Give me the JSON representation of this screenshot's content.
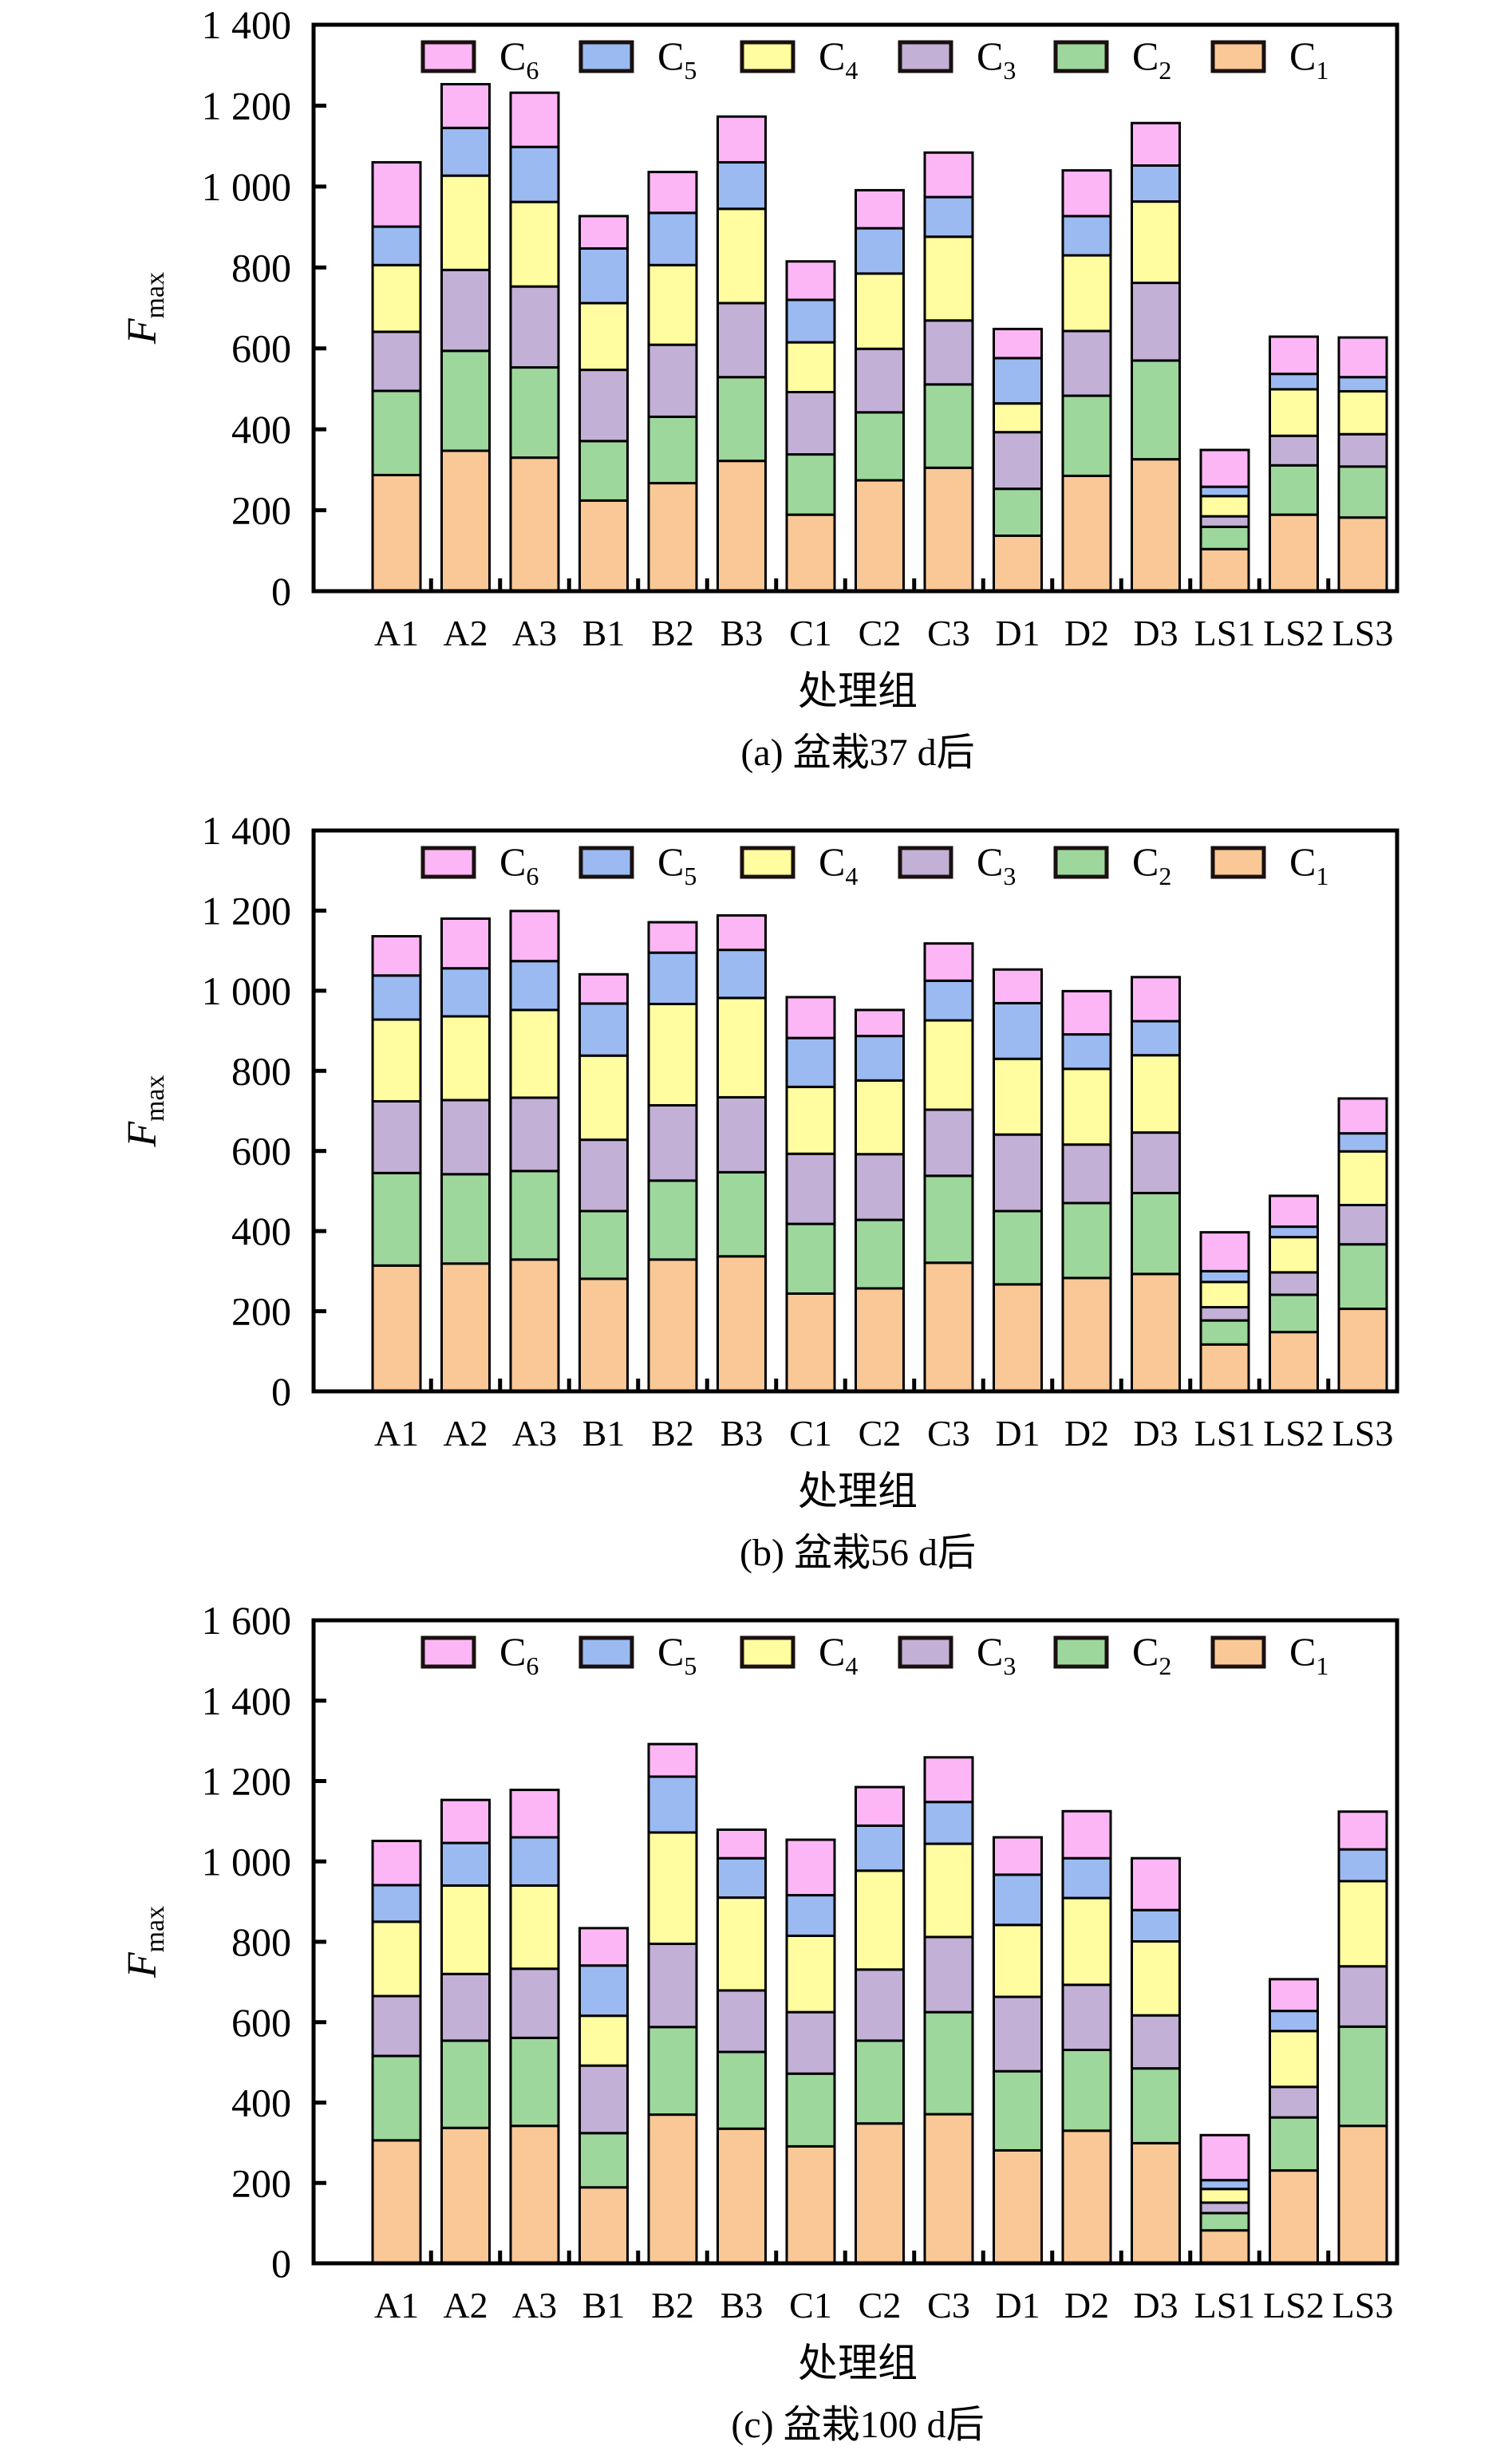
{
  "series_colors": {
    "C1": "#FAC896",
    "C2": "#9ED79B",
    "C3": "#C3B0D6",
    "C4": "#FFFDA0",
    "C5": "#9BBAF2",
    "C6": "#FCB6F5"
  },
  "chart_data": [
    {
      "type": "bar",
      "stacked": true,
      "title": "(a) 盆栽37 d后",
      "xlabel": "处理组",
      "ylabel": "F",
      "ylabel_sub": "max",
      "ylim": [
        0,
        1400
      ],
      "yticks": [
        "0",
        "200",
        "400",
        "600",
        "800",
        "1 000",
        "1 200",
        "1 400"
      ],
      "ytick_values": [
        0,
        200,
        400,
        600,
        800,
        1000,
        1200,
        1400
      ],
      "legend_placement": "top",
      "legend": [
        {
          "key": "C6",
          "base": "C",
          "sub": "6"
        },
        {
          "key": "C5",
          "base": "C",
          "sub": "5"
        },
        {
          "key": "C4",
          "base": "C",
          "sub": "4"
        },
        {
          "key": "C3",
          "base": "C",
          "sub": "3"
        },
        {
          "key": "C2",
          "base": "C",
          "sub": "2"
        },
        {
          "key": "C1",
          "base": "C",
          "sub": "1"
        }
      ],
      "categories": [
        "A1",
        "A2",
        "A3",
        "B1",
        "B2",
        "B3",
        "C1",
        "C2",
        "C3",
        "D1",
        "D2",
        "D3",
        "LS1",
        "LS2",
        "LS3"
      ],
      "series": [
        {
          "name": "C1",
          "values": [
            287,
            347,
            330,
            224,
            267,
            322,
            189,
            274,
            305,
            137,
            285,
            326,
            104,
            189,
            182
          ]
        },
        {
          "name": "C2",
          "values": [
            208,
            247,
            223,
            147,
            164,
            207,
            149,
            168,
            206,
            116,
            198,
            244,
            55,
            122,
            126
          ]
        },
        {
          "name": "C3",
          "values": [
            146,
            200,
            200,
            176,
            178,
            183,
            154,
            157,
            158,
            140,
            160,
            192,
            26,
            73,
            80
          ]
        },
        {
          "name": "C4",
          "values": [
            165,
            233,
            209,
            165,
            197,
            233,
            123,
            186,
            207,
            71,
            187,
            201,
            50,
            115,
            106
          ]
        },
        {
          "name": "C5",
          "values": [
            95,
            118,
            136,
            135,
            129,
            115,
            105,
            112,
            98,
            112,
            97,
            89,
            23,
            38,
            35
          ]
        },
        {
          "name": "C6",
          "values": [
            159,
            108,
            134,
            80,
            101,
            113,
            95,
            94,
            110,
            72,
            113,
            105,
            91,
            92,
            98
          ]
        }
      ]
    },
    {
      "type": "bar",
      "stacked": true,
      "title": "(b) 盆栽56 d后",
      "xlabel": "处理组",
      "ylabel": "F",
      "ylabel_sub": "max",
      "ylim": [
        0,
        1400
      ],
      "yticks": [
        "0",
        "200",
        "400",
        "600",
        "800",
        "1 000",
        "1 200",
        "1 400"
      ],
      "ytick_values": [
        0,
        200,
        400,
        600,
        800,
        1000,
        1200,
        1400
      ],
      "legend_placement": "top",
      "legend": [
        {
          "key": "C6",
          "base": "C",
          "sub": "6"
        },
        {
          "key": "C5",
          "base": "C",
          "sub": "5"
        },
        {
          "key": "C4",
          "base": "C",
          "sub": "4"
        },
        {
          "key": "C3",
          "base": "C",
          "sub": "3"
        },
        {
          "key": "C2",
          "base": "C",
          "sub": "2"
        },
        {
          "key": "C1",
          "base": "C",
          "sub": "1"
        }
      ],
      "categories": [
        "A1",
        "A2",
        "A3",
        "B1",
        "B2",
        "B3",
        "C1",
        "C2",
        "C3",
        "D1",
        "D2",
        "D3",
        "LS1",
        "LS2",
        "LS3"
      ],
      "series": [
        {
          "name": "C1",
          "values": [
            314,
            319,
            329,
            281,
            329,
            337,
            244,
            257,
            321,
            267,
            283,
            293,
            117,
            148,
            206
          ]
        },
        {
          "name": "C2",
          "values": [
            231,
            223,
            221,
            169,
            197,
            210,
            174,
            171,
            217,
            183,
            187,
            202,
            60,
            93,
            161
          ]
        },
        {
          "name": "C3",
          "values": [
            179,
            185,
            183,
            178,
            188,
            187,
            175,
            164,
            165,
            191,
            146,
            151,
            33,
            56,
            98
          ]
        },
        {
          "name": "C4",
          "values": [
            204,
            209,
            219,
            210,
            253,
            248,
            167,
            184,
            223,
            189,
            189,
            193,
            63,
            88,
            134
          ]
        },
        {
          "name": "C5",
          "values": [
            110,
            120,
            122,
            130,
            128,
            120,
            122,
            111,
            99,
            139,
            86,
            85,
            27,
            26,
            45
          ]
        },
        {
          "name": "C6",
          "values": [
            98,
            124,
            125,
            73,
            76,
            86,
            102,
            65,
            93,
            84,
            108,
            110,
            97,
            77,
            87
          ]
        }
      ]
    },
    {
      "type": "bar",
      "stacked": true,
      "title": "(c) 盆栽100 d后",
      "xlabel": "处理组",
      "ylabel": "F",
      "ylabel_sub": "max",
      "ylim": [
        0,
        1600
      ],
      "yticks": [
        "0",
        "200",
        "400",
        "600",
        "800",
        "1 000",
        "1 200",
        "1 400",
        "1 600"
      ],
      "ytick_values": [
        0,
        200,
        400,
        600,
        800,
        1000,
        1200,
        1400,
        1600
      ],
      "legend_placement": "top",
      "legend": [
        {
          "key": "C6",
          "base": "C",
          "sub": "6"
        },
        {
          "key": "C5",
          "base": "C",
          "sub": "5"
        },
        {
          "key": "C4",
          "base": "C",
          "sub": "4"
        },
        {
          "key": "C3",
          "base": "C",
          "sub": "3"
        },
        {
          "key": "C2",
          "base": "C",
          "sub": "2"
        },
        {
          "key": "C1",
          "base": "C",
          "sub": "1"
        }
      ],
      "categories": [
        "A1",
        "A2",
        "A3",
        "B1",
        "B2",
        "B3",
        "C1",
        "C2",
        "C3",
        "D1",
        "D2",
        "D3",
        "LS1",
        "LS2",
        "LS3"
      ],
      "series": [
        {
          "name": "C1",
          "values": [
            306,
            337,
            342,
            189,
            370,
            335,
            291,
            348,
            371,
            281,
            330,
            299,
            82,
            231,
            342
          ]
        },
        {
          "name": "C2",
          "values": [
            210,
            217,
            219,
            135,
            218,
            191,
            181,
            206,
            254,
            197,
            201,
            186,
            43,
            132,
            247
          ]
        },
        {
          "name": "C3",
          "values": [
            149,
            166,
            172,
            168,
            207,
            153,
            153,
            177,
            187,
            185,
            162,
            132,
            26,
            76,
            150
          ]
        },
        {
          "name": "C4",
          "values": [
            185,
            220,
            207,
            124,
            277,
            231,
            190,
            246,
            232,
            179,
            216,
            184,
            34,
            139,
            212
          ]
        },
        {
          "name": "C5",
          "values": [
            91,
            106,
            120,
            125,
            139,
            98,
            101,
            112,
            104,
            125,
            99,
            78,
            22,
            50,
            79
          ]
        },
        {
          "name": "C6",
          "values": [
            110,
            107,
            118,
            93,
            81,
            71,
            138,
            96,
            111,
            93,
            117,
            129,
            112,
            79,
            94
          ]
        }
      ]
    }
  ]
}
